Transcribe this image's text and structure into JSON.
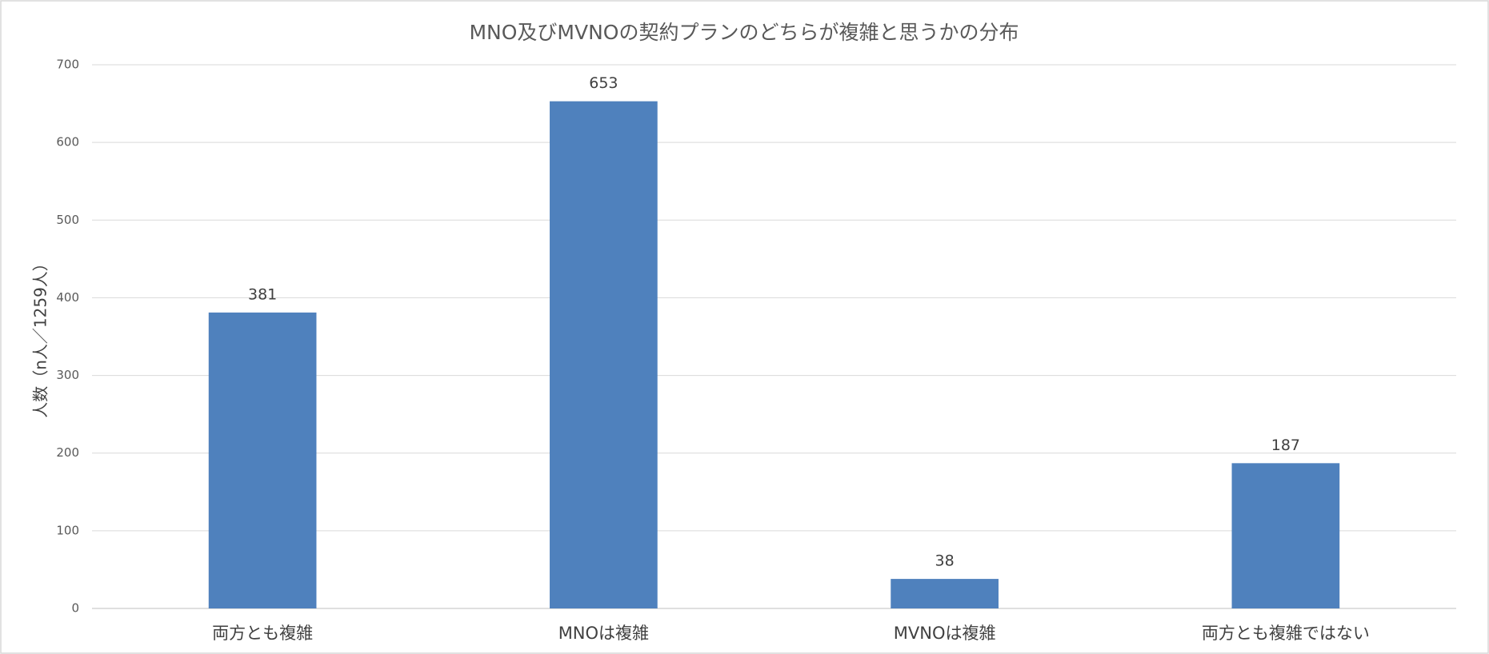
{
  "chart_data": {
    "type": "bar",
    "title": "MNO及びMVNOの契約プランのどちらが複雑と思うかの分布",
    "y_label": "人数（n人／1259人）",
    "categories": [
      "両方とも複雑",
      "MNOは複雑",
      "MVNOは複雑",
      "両方とも複雑ではない"
    ],
    "values": [
      381,
      653,
      38,
      187
    ],
    "color": "#4f81bd",
    "ylim": [
      0,
      700
    ],
    "yticks": [
      0,
      100,
      200,
      300,
      400,
      500,
      600,
      700
    ],
    "grid": true
  }
}
